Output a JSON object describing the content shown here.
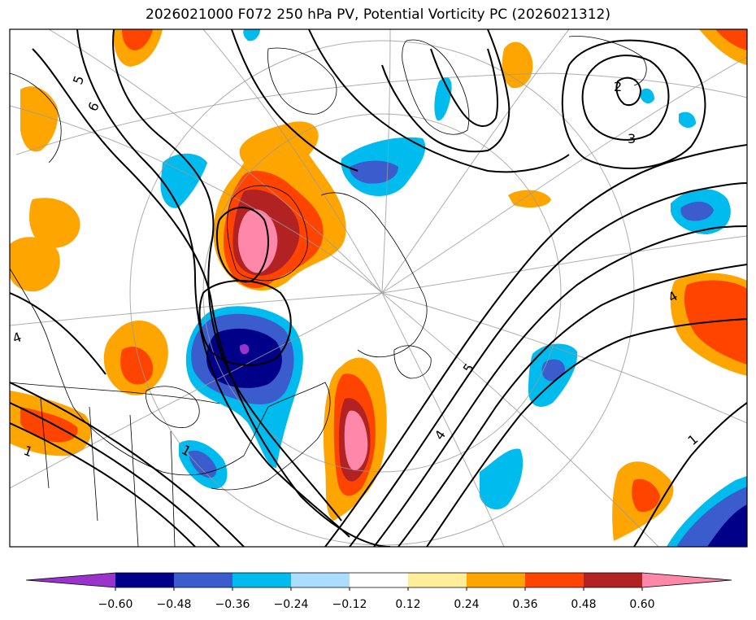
{
  "title": "2026021000 F072 250 hPa PV, Potential Vorticity PC (2026021312)",
  "colors": {
    "lt_-0.60": "#9933cc",
    "-0.60_-0.48": "#000088",
    "-0.48_-0.36": "#3a5ccc",
    "-0.36_-0.24": "#00bbee",
    "-0.24_-0.12": "#aaddff",
    "-0.12_0.12": "#ffffff",
    "0.12_0.24": "#ffee99",
    "0.24_0.36": "#ffa500",
    "0.36_0.48": "#ff4400",
    "0.48_0.60": "#b22222",
    "gt_0.60": "#ff88aa"
  },
  "colorbar": {
    "ticks": [
      "−0.60",
      "−0.48",
      "−0.36",
      "−0.24",
      "−0.12",
      "0.12",
      "0.24",
      "0.36",
      "0.48",
      "0.60"
    ]
  },
  "contour_labels": [
    "5",
    "6",
    "4",
    "1",
    "2",
    "3",
    "4",
    "1",
    "5",
    "4",
    "1"
  ]
}
